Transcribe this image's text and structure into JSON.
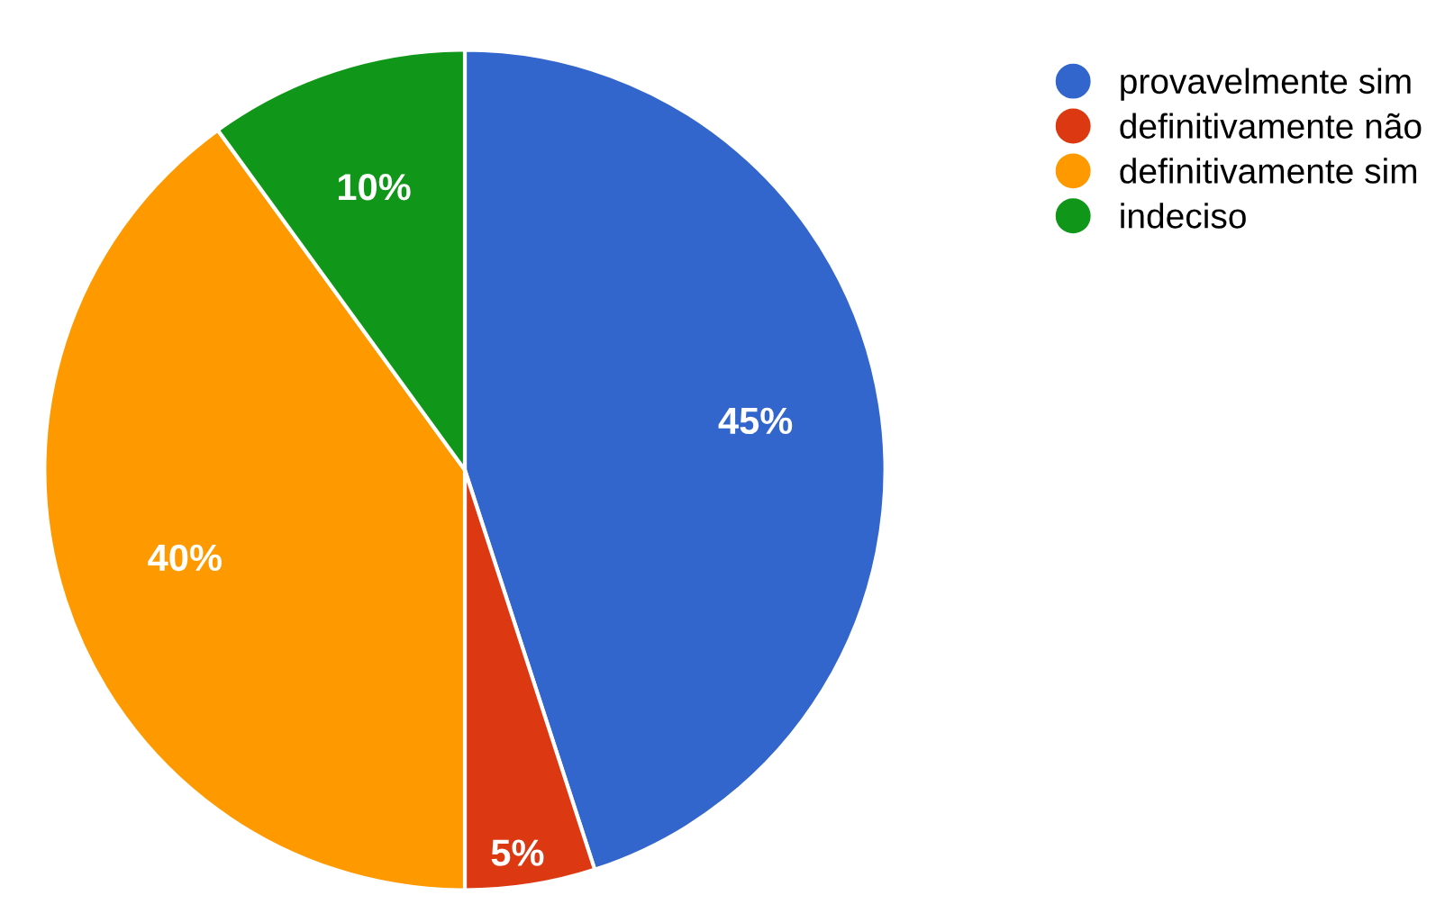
{
  "chart_data": {
    "type": "pie",
    "categories": [
      "provavelmente sim",
      "definitivamente não",
      "definitivamente sim",
      "indeciso"
    ],
    "values": [
      45,
      5,
      40,
      10
    ],
    "colors": [
      "#3366cc",
      "#dc3912",
      "#ff9900",
      "#109618"
    ],
    "value_labels": [
      "45%",
      "5%",
      "40%",
      "10%"
    ],
    "legend": "top right"
  }
}
